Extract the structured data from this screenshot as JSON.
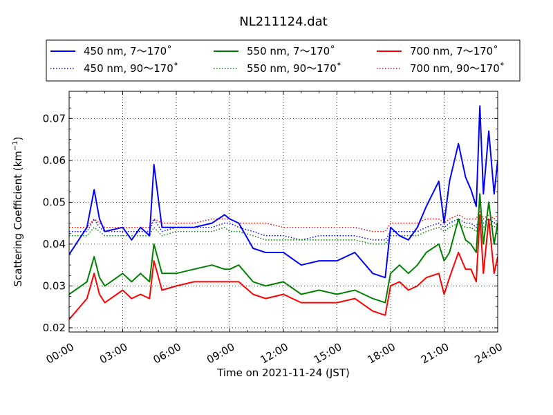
{
  "chart_data": {
    "type": "line",
    "title": "NL211124.dat",
    "xlabel": "Time on 2021-11-24 (JST)",
    "ylabel": "Scattering Coefficient (km",
    "ylabel_sup": "−1",
    "ylabel_close": ")",
    "xlim": [
      "00:00",
      "24:00"
    ],
    "ylim": [
      0.019,
      0.0765
    ],
    "x_ticks": [
      "00:00",
      "03:00",
      "06:00",
      "09:00",
      "12:00",
      "15:00",
      "18:00",
      "21:00",
      "24:00"
    ],
    "y_ticks": [
      "0.02",
      "0.03",
      "0.04",
      "0.05",
      "0.06",
      "0.07"
    ],
    "grid": true,
    "legend_position": "top (above plot)",
    "x_hours": [
      0,
      1,
      1.4,
      1.7,
      2,
      3,
      3.5,
      4,
      4.5,
      4.75,
      5.2,
      6,
      7,
      8,
      8.7,
      9,
      9.5,
      10.3,
      11,
      12,
      13,
      14,
      15,
      16,
      17,
      17.7,
      18,
      18.5,
      19,
      19.5,
      20,
      20.7,
      21,
      21.3,
      21.8,
      22.2,
      22.5,
      22.8,
      23,
      23.2,
      23.5,
      23.8,
      24
    ],
    "series": [
      {
        "name": "450 nm, 7～170˚",
        "color": "#0000ff",
        "style": "solid",
        "values": [
          0.0375,
          0.044,
          0.053,
          0.046,
          0.043,
          0.044,
          0.041,
          0.044,
          0.042,
          0.059,
          0.044,
          0.044,
          0.044,
          0.045,
          0.047,
          0.046,
          0.045,
          0.039,
          0.038,
          0.038,
          0.035,
          0.036,
          0.036,
          0.038,
          0.033,
          0.032,
          0.044,
          0.042,
          0.041,
          0.044,
          0.049,
          0.055,
          0.045,
          0.055,
          0.064,
          0.056,
          0.053,
          0.049,
          0.073,
          0.052,
          0.067,
          0.052,
          0.06
        ]
      },
      {
        "name": "450 nm, 90～170˚",
        "color": "#0000ff",
        "style": "dotted",
        "values": [
          0.043,
          0.043,
          0.046,
          0.044,
          0.043,
          0.043,
          0.043,
          0.043,
          0.043,
          0.046,
          0.043,
          0.044,
          0.044,
          0.044,
          0.045,
          0.045,
          0.044,
          0.043,
          0.042,
          0.042,
          0.041,
          0.042,
          0.042,
          0.042,
          0.041,
          0.041,
          0.043,
          0.043,
          0.043,
          0.043,
          0.044,
          0.045,
          0.044,
          0.045,
          0.046,
          0.045,
          0.045,
          0.044,
          0.047,
          0.045,
          0.046,
          0.045,
          0.046
        ]
      },
      {
        "name": "550 nm, 7～170˚",
        "color": "#008000",
        "style": "solid",
        "values": [
          0.028,
          0.031,
          0.037,
          0.032,
          0.03,
          0.033,
          0.031,
          0.033,
          0.031,
          0.04,
          0.033,
          0.033,
          0.034,
          0.035,
          0.034,
          0.034,
          0.035,
          0.031,
          0.03,
          0.031,
          0.028,
          0.029,
          0.028,
          0.029,
          0.027,
          0.026,
          0.033,
          0.035,
          0.033,
          0.035,
          0.038,
          0.04,
          0.036,
          0.038,
          0.046,
          0.041,
          0.04,
          0.038,
          0.052,
          0.04,
          0.05,
          0.04,
          0.045
        ]
      },
      {
        "name": "550 nm, 90～170˚",
        "color": "#008000",
        "style": "dotted",
        "values": [
          0.042,
          0.042,
          0.044,
          0.043,
          0.042,
          0.042,
          0.042,
          0.042,
          0.042,
          0.044,
          0.042,
          0.043,
          0.043,
          0.043,
          0.044,
          0.043,
          0.043,
          0.042,
          0.041,
          0.041,
          0.041,
          0.041,
          0.041,
          0.041,
          0.04,
          0.04,
          0.042,
          0.042,
          0.042,
          0.042,
          0.043,
          0.044,
          0.043,
          0.044,
          0.045,
          0.044,
          0.044,
          0.043,
          0.046,
          0.044,
          0.045,
          0.044,
          0.045
        ]
      },
      {
        "name": "700 nm, 7～170˚",
        "color": "#ff0000",
        "style": "solid",
        "values": [
          0.022,
          0.027,
          0.033,
          0.028,
          0.026,
          0.029,
          0.027,
          0.028,
          0.027,
          0.036,
          0.029,
          0.03,
          0.031,
          0.031,
          0.031,
          0.031,
          0.031,
          0.028,
          0.027,
          0.028,
          0.026,
          0.026,
          0.026,
          0.027,
          0.024,
          0.023,
          0.03,
          0.031,
          0.029,
          0.03,
          0.032,
          0.033,
          0.028,
          0.032,
          0.038,
          0.034,
          0.034,
          0.031,
          0.047,
          0.033,
          0.046,
          0.033,
          0.037
        ]
      },
      {
        "name": "700 nm, 90～170˚",
        "color": "#ff0000",
        "style": "dotted",
        "values": [
          0.044,
          0.044,
          0.046,
          0.045,
          0.044,
          0.044,
          0.044,
          0.044,
          0.044,
          0.046,
          0.045,
          0.045,
          0.045,
          0.046,
          0.046,
          0.046,
          0.045,
          0.045,
          0.045,
          0.044,
          0.044,
          0.044,
          0.044,
          0.044,
          0.043,
          0.043,
          0.045,
          0.045,
          0.045,
          0.045,
          0.046,
          0.046,
          0.045,
          0.046,
          0.047,
          0.046,
          0.046,
          0.046,
          0.048,
          0.046,
          0.047,
          0.046,
          0.047
        ]
      }
    ]
  }
}
